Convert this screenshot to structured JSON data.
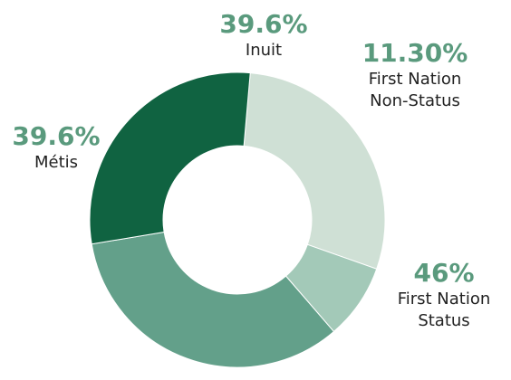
{
  "chart_data": {
    "type": "donut",
    "categories": [
      "Inuit",
      "First Nation Non-Status",
      "First Nation Status",
      "Métis"
    ],
    "values": [
      39.6,
      11.3,
      46,
      39.6
    ],
    "value_labels": [
      "39.6%",
      "11.30%",
      "46%",
      "39.6%"
    ],
    "colors": [
      "#cfe0d5",
      "#a3c9b8",
      "#63a08a",
      "#106341"
    ]
  }
}
